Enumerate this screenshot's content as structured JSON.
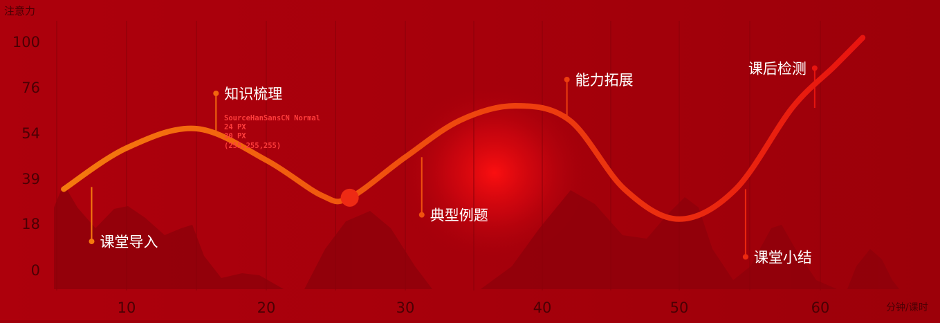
{
  "chart_data": {
    "type": "line",
    "ylabel": "注意力",
    "xlabel": "分钟/课时",
    "x_ticks": [
      10,
      20,
      30,
      40,
      50,
      60
    ],
    "y_ticks": [
      100,
      76,
      54,
      39,
      18,
      0
    ],
    "curve": {
      "x": [
        5.5,
        10,
        15,
        20,
        24,
        26,
        30,
        34,
        38,
        42,
        46,
        50,
        54,
        58,
        61,
        63
      ],
      "y": [
        34,
        49,
        56,
        45,
        31,
        30,
        46,
        60,
        67,
        60,
        34,
        20,
        34,
        66,
        87,
        102
      ]
    },
    "highlight_point": {
      "x": 26,
      "y": 30
    },
    "annotations": [
      {
        "label": "课堂导入",
        "x": 7.5,
        "y_curve": 35,
        "y_label": 11
      },
      {
        "label": "知识梳理",
        "x": 16.4,
        "y_curve": 54,
        "y_label": 73
      },
      {
        "label": "典型例题",
        "x": 31.2,
        "y_curve": 46,
        "y_label": 22
      },
      {
        "label": "能力拓展",
        "x": 41.8,
        "y_curve": 60,
        "y_label": 80
      },
      {
        "label": "课堂小结",
        "x": 54.7,
        "y_curve": 34,
        "y_label": 5
      },
      {
        "label": "课后检测",
        "x": 59.6,
        "y_curve": 66,
        "y_label": 86
      }
    ],
    "spec_note": [
      "SourceHanSansCN Normal",
      "24 PX",
      "30 PX",
      "(255,255,255)"
    ],
    "colors": {
      "background": "#a0000a",
      "curve_start": "#f57a0e",
      "curve_end": "#e8140f",
      "grid": "#8a0008",
      "mountain": "#8f000a",
      "label": "#ffffff",
      "axis_text": "#4a0004",
      "spec_text": "#ff3c3c"
    }
  }
}
